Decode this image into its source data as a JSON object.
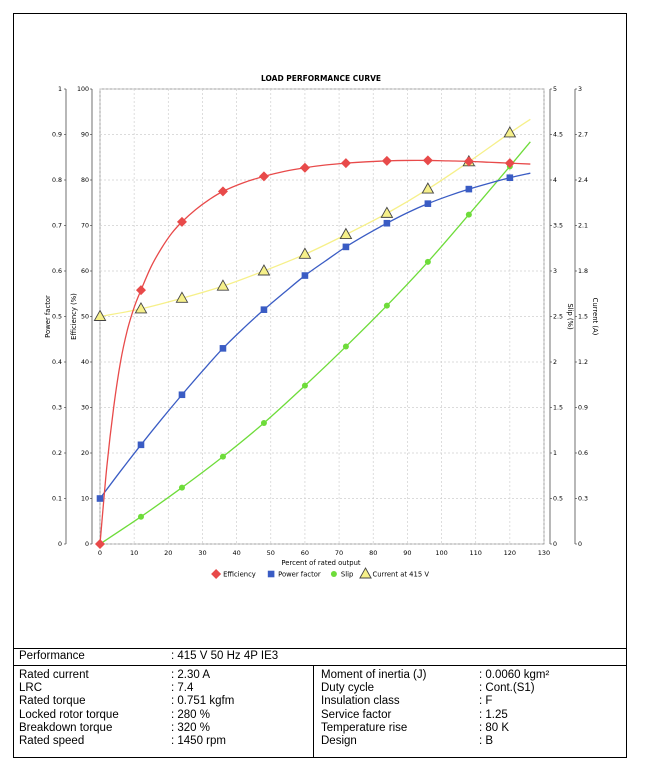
{
  "chart_data": {
    "type": "line",
    "title": "LOAD PERFORMANCE CURVE",
    "xlabel": "Percent of rated output",
    "xlim": [
      0,
      130
    ],
    "x_ticks": [
      0,
      10,
      20,
      30,
      40,
      50,
      60,
      70,
      80,
      90,
      100,
      110,
      120,
      130
    ],
    "grid": true,
    "axes": [
      {
        "key": "power_factor",
        "label": "Power factor",
        "side": "left-outer",
        "range": [
          0,
          1
        ],
        "ticks": [
          0,
          0.1,
          0.2,
          0.3,
          0.4,
          0.5,
          0.6,
          0.7,
          0.8,
          0.9,
          1
        ]
      },
      {
        "key": "efficiency",
        "label": "Efficiency (%)",
        "side": "left-inner",
        "range": [
          0,
          100
        ],
        "ticks": [
          0,
          10,
          20,
          30,
          40,
          50,
          60,
          70,
          80,
          90,
          100
        ]
      },
      {
        "key": "slip",
        "label": "Slip (%)",
        "side": "right-inner",
        "range": [
          0,
          5
        ],
        "ticks": [
          0,
          0.5,
          1,
          1.5,
          2,
          2.5,
          3,
          3.5,
          4,
          4.5,
          5
        ]
      },
      {
        "key": "current",
        "label": "Current (A)",
        "side": "right-outer",
        "range": [
          0,
          3
        ],
        "ticks": [
          0,
          0.3,
          0.6,
          0.9,
          1.2,
          1.5,
          1.8,
          2.1,
          2.4,
          2.7,
          3
        ]
      }
    ],
    "series": [
      {
        "name": "Efficiency",
        "axis": "efficiency",
        "color": "#e84a4a",
        "marker": "diamond",
        "x": [
          0,
          12,
          24,
          36,
          48,
          60,
          72,
          84,
          96,
          108,
          120
        ],
        "values": [
          0,
          55.8,
          70.8,
          77.5,
          80.8,
          82.7,
          83.7,
          84.2,
          84.3,
          84.1,
          83.7
        ],
        "curve_x": [
          0,
          2,
          4,
          6,
          8,
          10,
          12,
          15,
          18,
          21,
          24,
          28,
          32,
          36,
          42,
          48,
          54,
          60,
          66,
          72,
          78,
          84,
          90,
          96,
          102,
          108,
          114,
          120,
          126
        ],
        "curve_y": [
          0,
          17,
          30,
          40,
          47,
          52,
          55.8,
          61,
          65,
          68.3,
          70.8,
          73.5,
          75.7,
          77.5,
          79.4,
          80.8,
          81.9,
          82.7,
          83.3,
          83.7,
          84,
          84.2,
          84.3,
          84.3,
          84.2,
          84.1,
          83.9,
          83.7,
          83.5
        ]
      },
      {
        "name": "Power factor",
        "axis": "power_factor",
        "color": "#3a5cc4",
        "marker": "square",
        "x": [
          0,
          12,
          24,
          36,
          48,
          60,
          72,
          84,
          96,
          108,
          120
        ],
        "values": [
          0.1,
          0.218,
          0.328,
          0.43,
          0.515,
          0.59,
          0.653,
          0.705,
          0.748,
          0.78,
          0.805
        ],
        "curve_x": [
          0,
          6,
          12,
          18,
          24,
          30,
          36,
          42,
          48,
          54,
          60,
          66,
          72,
          78,
          84,
          90,
          96,
          102,
          108,
          114,
          120,
          126
        ],
        "curve_y": [
          0.1,
          0.16,
          0.218,
          0.274,
          0.328,
          0.38,
          0.43,
          0.474,
          0.515,
          0.553,
          0.59,
          0.622,
          0.653,
          0.68,
          0.705,
          0.728,
          0.748,
          0.765,
          0.78,
          0.793,
          0.805,
          0.815
        ]
      },
      {
        "name": "Slip",
        "axis": "slip",
        "color": "#6edc3a",
        "marker": "circle",
        "x": [
          0,
          12,
          24,
          36,
          48,
          60,
          72,
          84,
          96,
          108,
          120
        ],
        "values": [
          0,
          0.3,
          0.62,
          0.96,
          1.33,
          1.74,
          2.17,
          2.62,
          3.1,
          3.62,
          4.15
        ],
        "curve_x": [
          0,
          12,
          24,
          36,
          48,
          60,
          72,
          84,
          96,
          108,
          120,
          126
        ],
        "curve_y": [
          0,
          0.3,
          0.62,
          0.96,
          1.33,
          1.74,
          2.17,
          2.62,
          3.1,
          3.62,
          4.15,
          4.42
        ]
      },
      {
        "name": "Current at 415 V",
        "axis": "current",
        "color": "#f6f08a",
        "marker": "triangle",
        "x": [
          0,
          12,
          24,
          36,
          48,
          60,
          72,
          84,
          96,
          108,
          120
        ],
        "values": [
          1.5,
          1.55,
          1.62,
          1.7,
          1.8,
          1.91,
          2.04,
          2.18,
          2.34,
          2.52,
          2.71
        ],
        "curve_x": [
          0,
          12,
          24,
          36,
          48,
          60,
          72,
          84,
          96,
          108,
          120,
          126
        ],
        "curve_y": [
          1.5,
          1.55,
          1.62,
          1.7,
          1.8,
          1.91,
          2.04,
          2.18,
          2.34,
          2.52,
          2.71,
          2.8
        ]
      }
    ]
  },
  "table": {
    "performance_label": "Performance",
    "performance_value": ": 415 V 50 Hz 4P IE3",
    "left": [
      {
        "label": "Rated current",
        "value": ": 2.30 A"
      },
      {
        "label": "LRC",
        "value": ": 7.4"
      },
      {
        "label": "Rated torque",
        "value": ": 0.751 kgfm"
      },
      {
        "label": "Locked rotor torque",
        "value": ": 280 %"
      },
      {
        "label": "Breakdown torque",
        "value": ": 320 %"
      },
      {
        "label": "Rated speed",
        "value": ": 1450 rpm"
      }
    ],
    "right": [
      {
        "label": "Moment of inertia (J)",
        "value": ": 0.0060 kgm²"
      },
      {
        "label": "Duty cycle",
        "value": ": Cont.(S1)"
      },
      {
        "label": "Insulation class",
        "value": ": F"
      },
      {
        "label": "Service factor",
        "value": ": 1.25"
      },
      {
        "label": "Temperature rise",
        "value": ": 80 K"
      },
      {
        "label": "Design",
        "value": ": B"
      }
    ]
  }
}
